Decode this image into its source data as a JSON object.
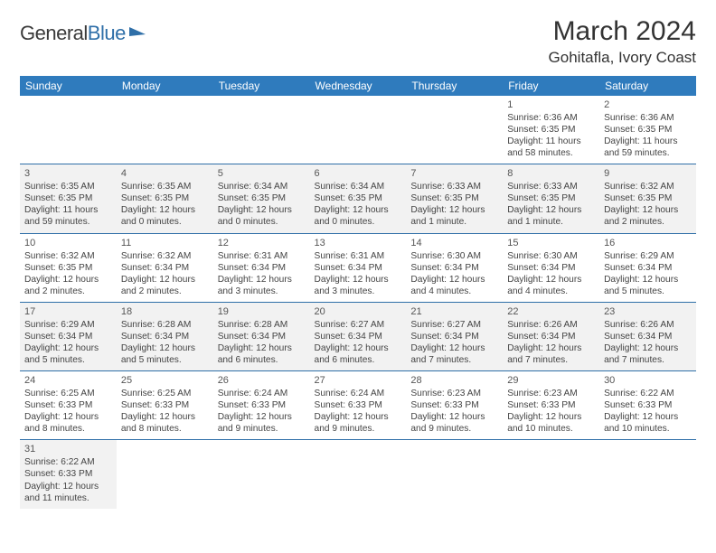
{
  "logo": {
    "part1": "General",
    "part2": "Blue"
  },
  "title": "March 2024",
  "location": "Gohitafla, Ivory Coast",
  "colors": {
    "header_bg": "#2f7bbd",
    "header_fg": "#ffffff",
    "grid_line": "#2f6fa8",
    "row_alt": "#f2f2f2",
    "text": "#444444"
  },
  "days_of_week": [
    "Sunday",
    "Monday",
    "Tuesday",
    "Wednesday",
    "Thursday",
    "Friday",
    "Saturday"
  ],
  "weeks": [
    [
      null,
      null,
      null,
      null,
      null,
      {
        "n": "1",
        "sr": "6:36 AM",
        "ss": "6:35 PM",
        "dl": "11 hours and 58 minutes."
      },
      {
        "n": "2",
        "sr": "6:36 AM",
        "ss": "6:35 PM",
        "dl": "11 hours and 59 minutes."
      }
    ],
    [
      {
        "n": "3",
        "sr": "6:35 AM",
        "ss": "6:35 PM",
        "dl": "11 hours and 59 minutes."
      },
      {
        "n": "4",
        "sr": "6:35 AM",
        "ss": "6:35 PM",
        "dl": "12 hours and 0 minutes."
      },
      {
        "n": "5",
        "sr": "6:34 AM",
        "ss": "6:35 PM",
        "dl": "12 hours and 0 minutes."
      },
      {
        "n": "6",
        "sr": "6:34 AM",
        "ss": "6:35 PM",
        "dl": "12 hours and 0 minutes."
      },
      {
        "n": "7",
        "sr": "6:33 AM",
        "ss": "6:35 PM",
        "dl": "12 hours and 1 minute."
      },
      {
        "n": "8",
        "sr": "6:33 AM",
        "ss": "6:35 PM",
        "dl": "12 hours and 1 minute."
      },
      {
        "n": "9",
        "sr": "6:32 AM",
        "ss": "6:35 PM",
        "dl": "12 hours and 2 minutes."
      }
    ],
    [
      {
        "n": "10",
        "sr": "6:32 AM",
        "ss": "6:35 PM",
        "dl": "12 hours and 2 minutes."
      },
      {
        "n": "11",
        "sr": "6:32 AM",
        "ss": "6:34 PM",
        "dl": "12 hours and 2 minutes."
      },
      {
        "n": "12",
        "sr": "6:31 AM",
        "ss": "6:34 PM",
        "dl": "12 hours and 3 minutes."
      },
      {
        "n": "13",
        "sr": "6:31 AM",
        "ss": "6:34 PM",
        "dl": "12 hours and 3 minutes."
      },
      {
        "n": "14",
        "sr": "6:30 AM",
        "ss": "6:34 PM",
        "dl": "12 hours and 4 minutes."
      },
      {
        "n": "15",
        "sr": "6:30 AM",
        "ss": "6:34 PM",
        "dl": "12 hours and 4 minutes."
      },
      {
        "n": "16",
        "sr": "6:29 AM",
        "ss": "6:34 PM",
        "dl": "12 hours and 5 minutes."
      }
    ],
    [
      {
        "n": "17",
        "sr": "6:29 AM",
        "ss": "6:34 PM",
        "dl": "12 hours and 5 minutes."
      },
      {
        "n": "18",
        "sr": "6:28 AM",
        "ss": "6:34 PM",
        "dl": "12 hours and 5 minutes."
      },
      {
        "n": "19",
        "sr": "6:28 AM",
        "ss": "6:34 PM",
        "dl": "12 hours and 6 minutes."
      },
      {
        "n": "20",
        "sr": "6:27 AM",
        "ss": "6:34 PM",
        "dl": "12 hours and 6 minutes."
      },
      {
        "n": "21",
        "sr": "6:27 AM",
        "ss": "6:34 PM",
        "dl": "12 hours and 7 minutes."
      },
      {
        "n": "22",
        "sr": "6:26 AM",
        "ss": "6:34 PM",
        "dl": "12 hours and 7 minutes."
      },
      {
        "n": "23",
        "sr": "6:26 AM",
        "ss": "6:34 PM",
        "dl": "12 hours and 7 minutes."
      }
    ],
    [
      {
        "n": "24",
        "sr": "6:25 AM",
        "ss": "6:33 PM",
        "dl": "12 hours and 8 minutes."
      },
      {
        "n": "25",
        "sr": "6:25 AM",
        "ss": "6:33 PM",
        "dl": "12 hours and 8 minutes."
      },
      {
        "n": "26",
        "sr": "6:24 AM",
        "ss": "6:33 PM",
        "dl": "12 hours and 9 minutes."
      },
      {
        "n": "27",
        "sr": "6:24 AM",
        "ss": "6:33 PM",
        "dl": "12 hours and 9 minutes."
      },
      {
        "n": "28",
        "sr": "6:23 AM",
        "ss": "6:33 PM",
        "dl": "12 hours and 9 minutes."
      },
      {
        "n": "29",
        "sr": "6:23 AM",
        "ss": "6:33 PM",
        "dl": "12 hours and 10 minutes."
      },
      {
        "n": "30",
        "sr": "6:22 AM",
        "ss": "6:33 PM",
        "dl": "12 hours and 10 minutes."
      }
    ],
    [
      {
        "n": "31",
        "sr": "6:22 AM",
        "ss": "6:33 PM",
        "dl": "12 hours and 11 minutes."
      },
      null,
      null,
      null,
      null,
      null,
      null
    ]
  ],
  "labels": {
    "sunrise": "Sunrise:",
    "sunset": "Sunset:",
    "daylight": "Daylight:"
  }
}
